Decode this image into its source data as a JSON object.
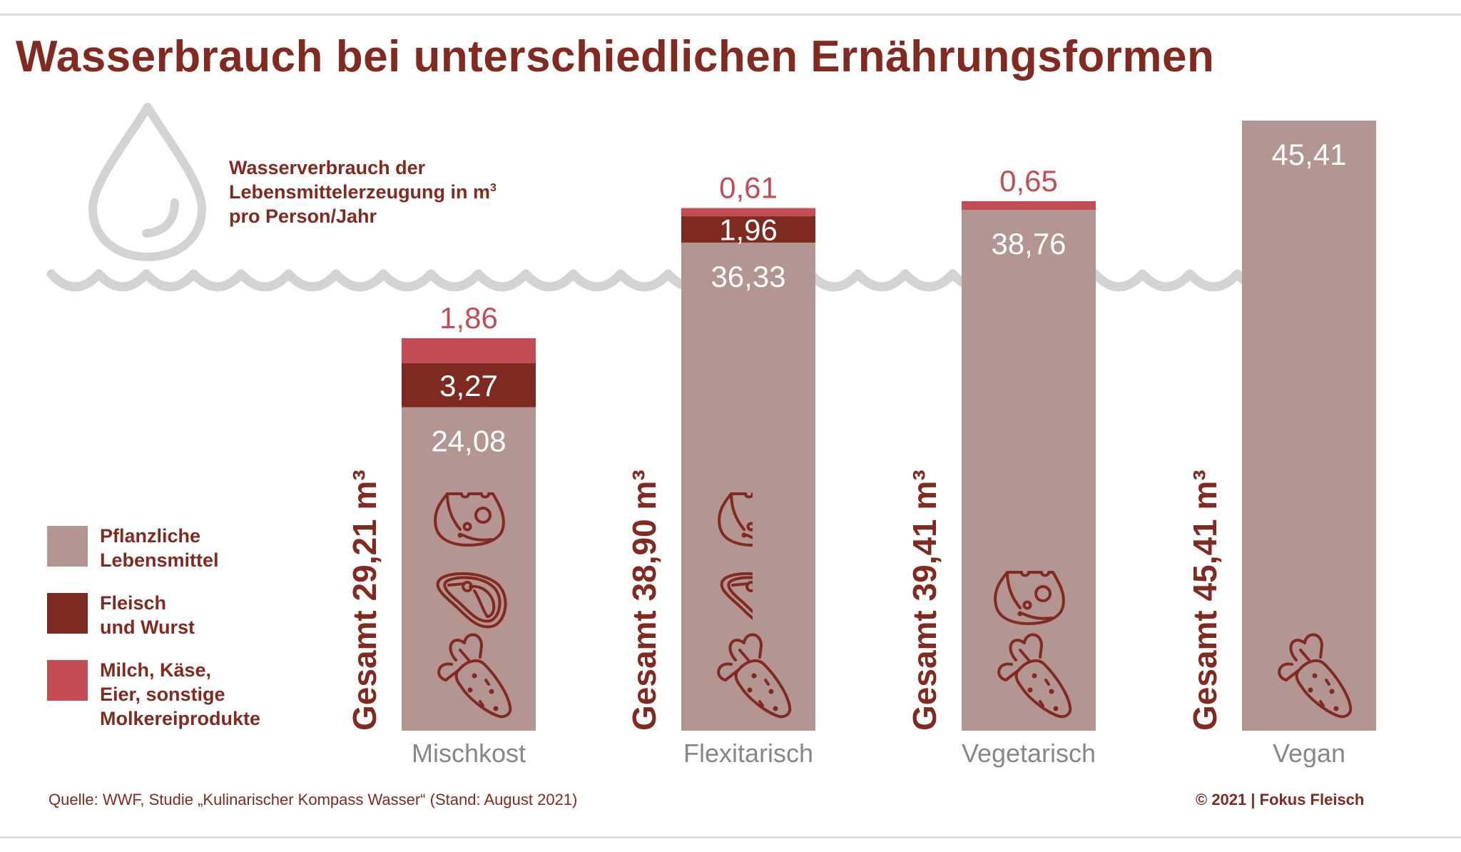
{
  "title": "Wasserbrauch bei unterschiedlichen Ernährungsformen",
  "subtitle": {
    "line1": "Wasserverbrauch der",
    "line2": "Lebensmittelerzeugung in m",
    "line2_sup": "3",
    "line3": "pro Person/Jahr"
  },
  "colors": {
    "pflanzlich": "#b39591",
    "fleisch": "#7e2a20",
    "milch": "#c44d55",
    "text_dark": "#832a20",
    "water_gray": "#d3d3d3"
  },
  "legend": [
    {
      "key": "pflanzlich",
      "lines": [
        "Pflanzliche",
        "Lebensmittel"
      ]
    },
    {
      "key": "fleisch",
      "lines": [
        "Fleisch",
        "und Wurst"
      ]
    },
    {
      "key": "milch",
      "lines": [
        "Milch, Käse,",
        "Eier, sonstige",
        "Molkereiprodukte"
      ]
    }
  ],
  "chart_data": {
    "type": "bar",
    "stacked": true,
    "title": "Wasserbrauch bei unterschiedlichen Ernährungsformen",
    "ylabel": "Wasserverbrauch der Lebensmittelerzeugung in m³ pro Person/Jahr",
    "xlabel": "",
    "ylim": [
      0,
      45.41
    ],
    "categories": [
      "Mischkost",
      "Flexitarisch",
      "Vegetarisch",
      "Vegan"
    ],
    "series": [
      {
        "name": "Pflanzliche Lebensmittel",
        "key": "pflanzlich",
        "values": [
          24.08,
          36.33,
          38.76,
          45.41
        ],
        "labels": [
          "24,08",
          "36,33",
          "38,76",
          "45,41"
        ]
      },
      {
        "name": "Fleisch und Wurst",
        "key": "fleisch",
        "values": [
          3.27,
          1.96,
          0,
          0
        ],
        "labels": [
          "3,27",
          "1,96",
          "",
          ""
        ]
      },
      {
        "name": "Milch, Käse, Eier, sonstige Molkereiprodukte",
        "key": "milch",
        "values": [
          1.86,
          0.61,
          0.65,
          0
        ],
        "labels": [
          "1,86",
          "0,61",
          "0,65",
          ""
        ]
      }
    ],
    "totals": [
      29.21,
      38.9,
      39.41,
      45.41
    ],
    "total_labels": [
      "Gesamt 29,21 m³",
      "Gesamt 38,90 m³",
      "Gesamt 39,41 m³",
      "Gesamt 45,41 m³"
    ],
    "icons": [
      [
        "cheese",
        "steak",
        "carrot"
      ],
      [
        "cheese-half",
        "steak-half",
        "carrot"
      ],
      [
        "cheese",
        "carrot"
      ],
      [
        "carrot"
      ]
    ],
    "legend_position": "left",
    "grid": false
  },
  "source": "Quelle: WWF, Studie „Kulinarischer Kompass Wasser“ (Stand: August 2021)",
  "copyright": "© 2021 | Fokus Fleisch"
}
